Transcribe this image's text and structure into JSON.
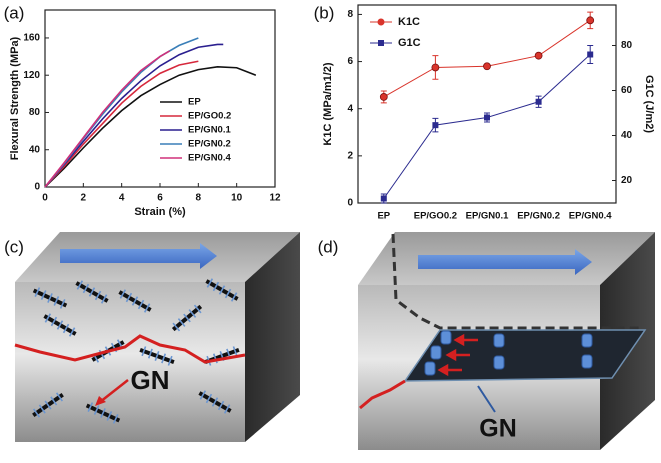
{
  "chart_data": [
    {
      "type": "line",
      "label": "(a)",
      "x_label": "Strain (%)",
      "y_label": "Flexural Strength (MPa)",
      "xlim": [
        0,
        12
      ],
      "xticks": [
        0,
        2,
        4,
        6,
        8,
        10,
        12
      ],
      "ylim": [
        0,
        190
      ],
      "yticks": [
        0,
        40,
        80,
        120,
        160
      ],
      "legend": "lower right",
      "series": [
        {
          "name": "EP",
          "color": "#111111",
          "x": [
            0,
            1,
            2,
            3,
            4,
            5,
            6,
            7,
            8,
            9,
            10,
            11
          ],
          "values": [
            0,
            20,
            42,
            63,
            82,
            98,
            110,
            120,
            126,
            129,
            128,
            120
          ]
        },
        {
          "name": "EP/GO0.2",
          "color": "#d6283c",
          "x": [
            0,
            1,
            2,
            3,
            4,
            5,
            6,
            7,
            8
          ],
          "values": [
            0,
            22,
            46,
            68,
            90,
            108,
            122,
            131,
            135
          ]
        },
        {
          "name": "EP/GN0.1",
          "color": "#2a1f8f",
          "x": [
            0,
            1,
            2,
            3,
            4,
            5,
            6,
            7,
            8,
            9,
            9.3
          ],
          "values": [
            0,
            24,
            49,
            73,
            95,
            114,
            130,
            142,
            150,
            153,
            153
          ]
        },
        {
          "name": "EP/GN0.2",
          "color": "#3a7fb8",
          "x": [
            0,
            1,
            2,
            3,
            4,
            5,
            6,
            7,
            8
          ],
          "values": [
            0,
            25,
            52,
            78,
            102,
            123,
            140,
            152,
            160
          ]
        },
        {
          "name": "EP/GN0.4",
          "color": "#d0307a",
          "x": [
            0,
            1,
            2,
            3,
            4,
            5,
            6,
            6.5
          ],
          "values": [
            0,
            26,
            53,
            80,
            104,
            125,
            140,
            146
          ]
        }
      ]
    },
    {
      "type": "line",
      "label": "(b)",
      "y_label": "K1C (MPa/m1/2)",
      "y2_label": "G1C (J/m2)",
      "categories": [
        "EP",
        "EP/GO0.2",
        "EP/GN0.1",
        "EP/GN0.2",
        "EP/GN0.4"
      ],
      "ylim": [
        0,
        8.4
      ],
      "yticks": [
        0,
        2,
        4,
        6,
        8
      ],
      "y2lim": [
        10,
        98
      ],
      "y2ticks": [
        20,
        40,
        60,
        80
      ],
      "legend": "upper left",
      "series": [
        {
          "name": "K1C",
          "color": "#d9342b",
          "marker": "circle",
          "values": [
            4.5,
            5.75,
            5.8,
            6.25,
            7.75
          ],
          "errors": [
            0.25,
            0.5,
            0.05,
            0.05,
            0.35
          ]
        },
        {
          "name": "G1C",
          "color": "#2b2b8f",
          "marker": "square",
          "axis": "y2",
          "values": [
            12,
            44.6,
            48,
            55,
            76
          ],
          "errors": [
            2,
            3,
            2,
            2.5,
            4
          ]
        }
      ]
    }
  ],
  "illustrations": [
    {
      "label": "(c)",
      "annotation": "GN"
    },
    {
      "label": "(d)",
      "annotation": "GN"
    }
  ]
}
